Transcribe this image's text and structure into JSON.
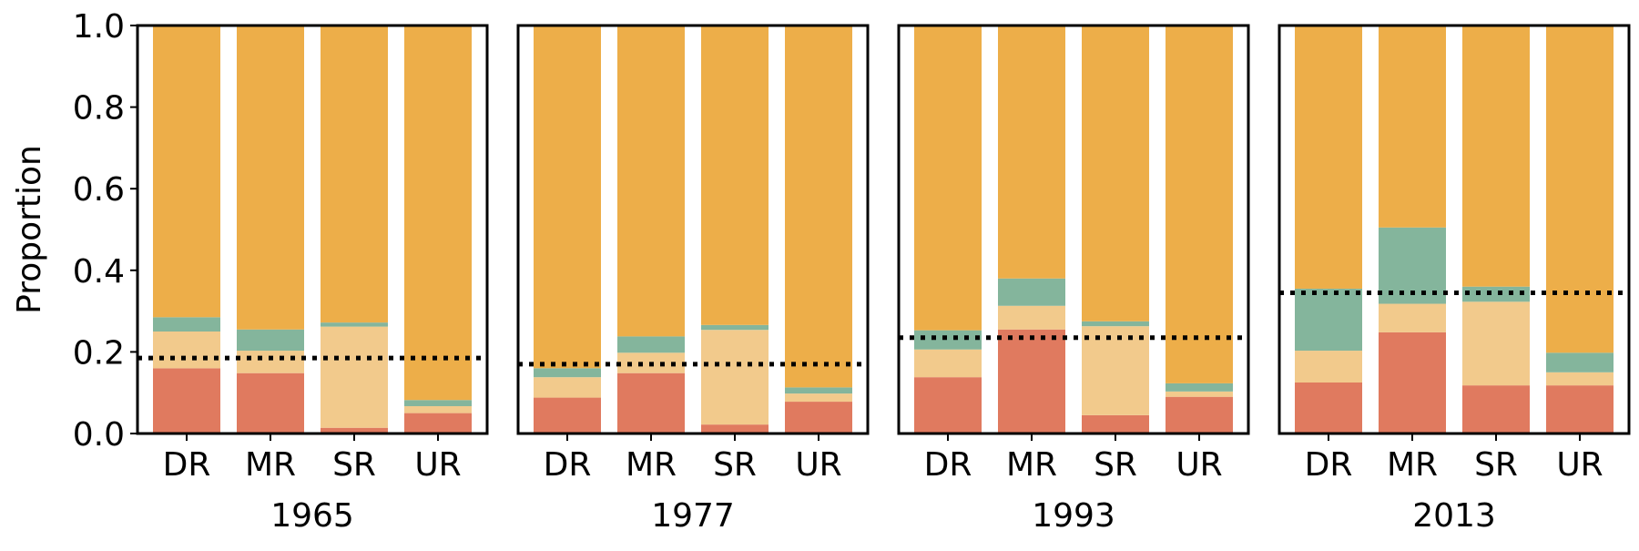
{
  "chart_data": {
    "type": "bar",
    "stacked": true,
    "ylabel": "Proportion",
    "ylim": [
      0,
      1
    ],
    "yticks": [
      "0.0",
      "0.2",
      "0.4",
      "0.6",
      "0.8",
      "1.0"
    ],
    "categories": [
      "DR",
      "MR",
      "SR",
      "UR"
    ],
    "series_colors": [
      "#e07a5f",
      "#f2ca8c",
      "#84b59c",
      "#edae49"
    ],
    "reference_line_style": "dotted",
    "panels": [
      {
        "title": "1965",
        "reference_value": 0.185,
        "stacks": [
          [
            0.16,
            0.09,
            0.035,
            0.715
          ],
          [
            0.148,
            0.055,
            0.052,
            0.745
          ],
          [
            0.014,
            0.248,
            0.01,
            0.728
          ],
          [
            0.05,
            0.017,
            0.015,
            0.918
          ]
        ]
      },
      {
        "title": "1977",
        "reference_value": 0.17,
        "stacks": [
          [
            0.088,
            0.05,
            0.022,
            0.84
          ],
          [
            0.148,
            0.05,
            0.04,
            0.762
          ],
          [
            0.022,
            0.232,
            0.012,
            0.734
          ],
          [
            0.078,
            0.02,
            0.015,
            0.887
          ]
        ]
      },
      {
        "title": "1993",
        "reference_value": 0.235,
        "stacks": [
          [
            0.138,
            0.068,
            0.047,
            0.747
          ],
          [
            0.255,
            0.058,
            0.067,
            0.62
          ],
          [
            0.045,
            0.218,
            0.012,
            0.725
          ],
          [
            0.09,
            0.013,
            0.02,
            0.877
          ]
        ]
      },
      {
        "title": "2013",
        "reference_value": 0.345,
        "stacks": [
          [
            0.125,
            0.078,
            0.152,
            0.645
          ],
          [
            0.248,
            0.07,
            0.187,
            0.495
          ],
          [
            0.118,
            0.205,
            0.037,
            0.64
          ],
          [
            0.118,
            0.032,
            0.048,
            0.802
          ]
        ]
      }
    ]
  }
}
